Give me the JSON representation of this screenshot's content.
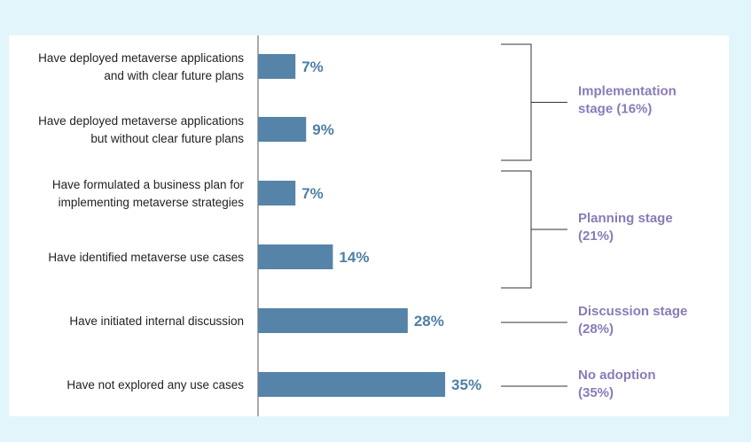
{
  "chart_data": {
    "type": "bar",
    "orientation": "horizontal",
    "title": "",
    "xlabel": "",
    "ylabel": "",
    "xlim": [
      0,
      40
    ],
    "categories": [
      [
        "Have deployed metaverse applications",
        "and with clear future plans"
      ],
      [
        "Have deployed metaverse applications",
        "but without clear future plans"
      ],
      [
        "Have formulated a business plan for",
        "implementing metaverse strategies"
      ],
      [
        "Have identified metaverse use cases"
      ],
      [
        "Have initiated internal discussion"
      ],
      [
        "Have not explored any use cases"
      ]
    ],
    "values": [
      7,
      9,
      7,
      14,
      28,
      35
    ],
    "value_labels": [
      "7%",
      "9%",
      "7%",
      "14%",
      "28%",
      "35%"
    ],
    "bar_color": "#5683a8",
    "label_color": "#4f7fa3",
    "stage_color": "#8a7bb8",
    "stages": [
      {
        "lines": [
          "Implementation",
          "stage (16%)"
        ],
        "from": 0,
        "to": 1
      },
      {
        "lines": [
          "Planning stage",
          "(21%)"
        ],
        "from": 2,
        "to": 3
      },
      {
        "lines": [
          "Discussion stage",
          "(28%)"
        ],
        "from": 4,
        "to": 4
      },
      {
        "lines": [
          "No adoption",
          "(35%)"
        ],
        "from": 5,
        "to": 5
      }
    ]
  }
}
